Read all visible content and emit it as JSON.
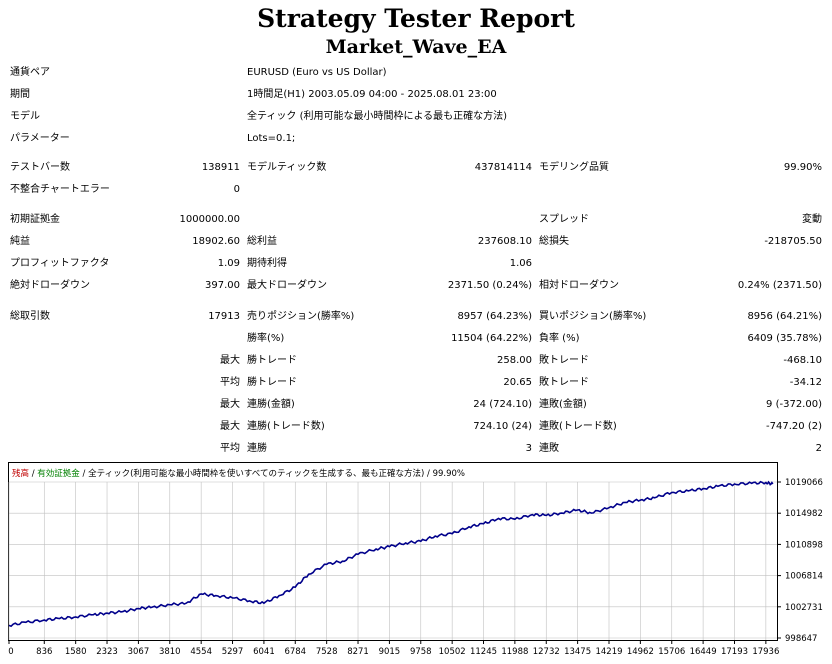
{
  "report": {
    "title": "Strategy Tester Report",
    "subtitle": "Market_Wave_EA"
  },
  "info": {
    "currency_pair_label": "通貨ペア",
    "currency_pair_value": "EURUSD (Euro vs US Dollar)",
    "period_label": "期間",
    "period_value": "1時間足(H1) 2003.05.09 04:00 - 2025.08.01 23:00",
    "model_label": "モデル",
    "model_value": "全ティック (利用可能な最小時間枠による最も正確な方法)",
    "parameters_label": "パラメーター",
    "parameters_value": "Lots=0.1;"
  },
  "stats": {
    "bars_label": "テストバー数",
    "bars_value": "138911",
    "ticks_label": "モデルティック数",
    "ticks_value": "437814114",
    "quality_label": "モデリング品質",
    "quality_value": "99.90%",
    "mismatch_label": "不整合チャートエラー",
    "mismatch_value": "0",
    "deposit_label": "初期証拠金",
    "deposit_value": "1000000.00",
    "spread_label": "スプレッド",
    "spread_value": "変動",
    "net_profit_label": "純益",
    "net_profit_value": "18902.60",
    "gross_profit_label": "総利益",
    "gross_profit_value": "237608.10",
    "gross_loss_label": "総損失",
    "gross_loss_value": "-218705.50",
    "profit_factor_label": "プロフィットファクタ",
    "profit_factor_value": "1.09",
    "expected_payoff_label": "期待利得",
    "expected_payoff_value": "1.06",
    "abs_dd_label": "絶対ドローダウン",
    "abs_dd_value": "397.00",
    "max_dd_label": "最大ドローダウン",
    "max_dd_value": "2371.50 (0.24%)",
    "rel_dd_label": "相対ドローダウン",
    "rel_dd_value": "0.24% (2371.50)",
    "total_trades_label": "総取引数",
    "total_trades_value": "17913",
    "short_label": "売りポジション(勝率%)",
    "short_value": "8957 (64.23%)",
    "long_label": "買いポジション(勝率%)",
    "long_value": "8956 (64.21%)",
    "win_rate_label": "勝率(%)",
    "win_rate_value": "11504 (64.22%)",
    "loss_rate_label": "負率 (%)",
    "loss_rate_value": "6409 (35.78%)",
    "largest_prefix": "最大",
    "largest_win_label": "勝トレード",
    "largest_win_value": "258.00",
    "largest_loss_label": "敗トレード",
    "largest_loss_value": "-468.10",
    "average_prefix": "平均",
    "average_win_label": "勝トレード",
    "average_win_value": "20.65",
    "average_loss_label": "敗トレード",
    "average_loss_value": "-34.12",
    "max_cons_prefix": "最大",
    "max_cons_wins_label": "連勝(金額)",
    "max_cons_wins_value": "24 (724.10)",
    "max_cons_losses_label": "連敗(金額)",
    "max_cons_losses_value": "9 (-372.00)",
    "max_cons_profit_prefix": "最大",
    "max_cons_profit_label": "連勝(トレード数)",
    "max_cons_profit_value": "724.10 (24)",
    "max_cons_loss_label": "連敗(トレード数)",
    "max_cons_loss_value": "-747.20 (2)",
    "avg_cons_prefix": "平均",
    "avg_cons_wins_label": "連勝",
    "avg_cons_wins_value": "3",
    "avg_cons_losses_label": "連敗",
    "avg_cons_losses_value": "2"
  },
  "chart_header": {
    "balance": "残高",
    "sep1": " / ",
    "equity": "有効証拠金",
    "sep2": " / ",
    "model": "全ティック(利用可能な最小時間枠を使いすべてのティックを生成する、最も正確な方法)",
    "sep3": " / ",
    "quality": "99.90%"
  },
  "colors": {
    "balance": "#c00000",
    "equity": "#008000",
    "line": "#00008b",
    "grid": "#c0c0c0"
  },
  "chart_data": {
    "type": "line",
    "x_ticks": [
      "0",
      "836",
      "1580",
      "2323",
      "3067",
      "3810",
      "4554",
      "5297",
      "6041",
      "6784",
      "7528",
      "8271",
      "9015",
      "9758",
      "10502",
      "11245",
      "11988",
      "12732",
      "13475",
      "14219",
      "14962",
      "15706",
      "16449",
      "17193",
      "17936"
    ],
    "y_ticks": [
      "1019066",
      "1014982",
      "1010898",
      "1006814",
      "1002731",
      "998647"
    ],
    "ylim": [
      998647,
      1019066
    ],
    "xlim": [
      0,
      18200
    ],
    "series": [
      {
        "x": [
          0,
          400,
          836,
          1200,
          1580,
          2000,
          2323,
          2700,
          3067,
          3400,
          3810,
          4200,
          4554,
          4900,
          5297,
          5700,
          6041,
          6400,
          6784,
          7100,
          7528,
          7900,
          8271,
          8700,
          9015,
          9400,
          9758,
          10100,
          10502,
          10900,
          11245,
          11600,
          11988,
          12400,
          12732,
          13100,
          13475,
          13800,
          14219,
          14600,
          14962,
          15300,
          15706,
          16100,
          16449,
          16800,
          17193,
          17600,
          17936,
          18100
        ],
        "values": [
          1000300,
          1000700,
          1001000,
          1001200,
          1001400,
          1001700,
          1001900,
          1002100,
          1002500,
          1002700,
          1003000,
          1003200,
          1004400,
          1004200,
          1003900,
          1003500,
          1003200,
          1004200,
          1005300,
          1007000,
          1008300,
          1008700,
          1009600,
          1010300,
          1010600,
          1011100,
          1011300,
          1012000,
          1012300,
          1013200,
          1013600,
          1014300,
          1014200,
          1014800,
          1014700,
          1015000,
          1015400,
          1015000,
          1015700,
          1016400,
          1016700,
          1017000,
          1017700,
          1017900,
          1018200,
          1018500,
          1018800,
          1018900,
          1019000,
          1018800
        ]
      }
    ]
  }
}
